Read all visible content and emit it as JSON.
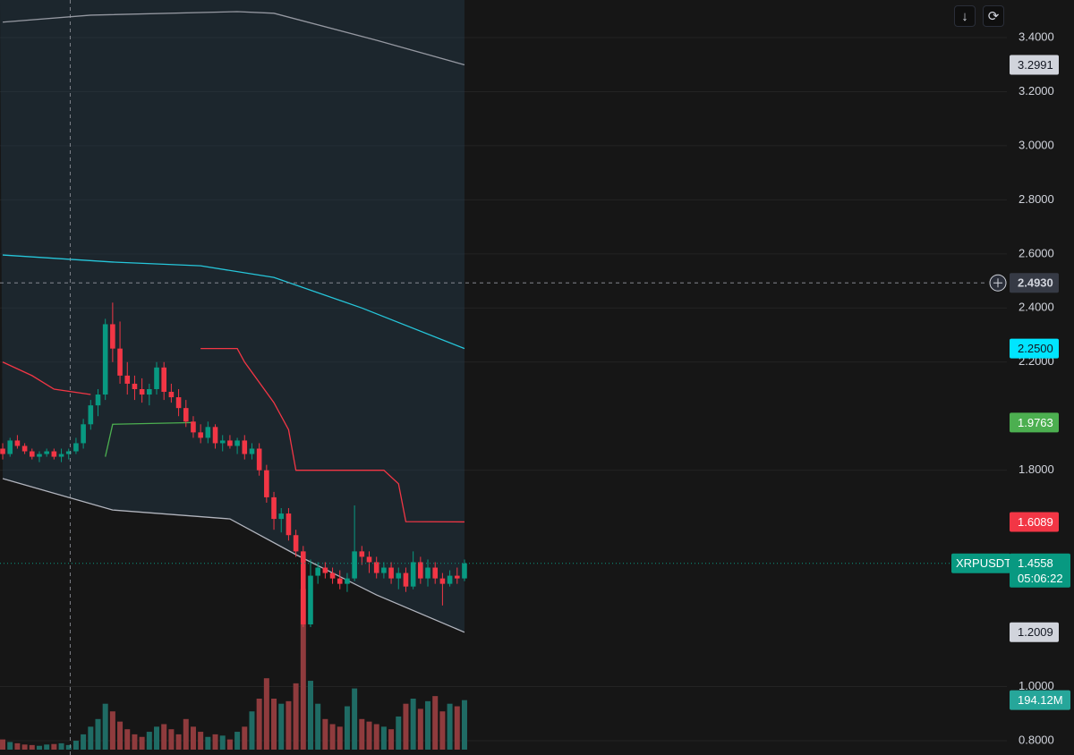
{
  "chart_data": {
    "type": "candlestick",
    "symbol": "XRPUSDT",
    "countdown": "05:06:22",
    "xlim": [
      -0.37,
      137
    ],
    "ylim": [
      0.747,
      3.539
    ],
    "yticks": [
      {
        "value": 3.4,
        "label": "3.4000"
      },
      {
        "value": 3.2,
        "label": "3.2000"
      },
      {
        "value": 3.0,
        "label": "3.0000"
      },
      {
        "value": 2.8,
        "label": "2.8000"
      },
      {
        "value": 2.6,
        "label": "2.6000"
      },
      {
        "value": 2.4,
        "label": "2.4000"
      },
      {
        "value": 2.2,
        "label": "2.2000"
      },
      {
        "value": 1.8,
        "label": "1.8000"
      },
      {
        "value": 1.0,
        "label": "1.0000"
      },
      {
        "value": 0.8,
        "label": "0.8000"
      }
    ],
    "grid": true,
    "up_color": "#089981",
    "down_color": "#f23645",
    "candles": [
      [
        1.88,
        1.9,
        1.84,
        1.86
      ],
      [
        1.86,
        1.92,
        1.85,
        1.91
      ],
      [
        1.91,
        1.93,
        1.88,
        1.89
      ],
      [
        1.89,
        1.9,
        1.86,
        1.87
      ],
      [
        1.87,
        1.88,
        1.84,
        1.85
      ],
      [
        1.85,
        1.87,
        1.83,
        1.86
      ],
      [
        1.86,
        1.88,
        1.85,
        1.87
      ],
      [
        1.87,
        1.88,
        1.84,
        1.85
      ],
      [
        1.85,
        1.88,
        1.83,
        1.86
      ],
      [
        1.86,
        1.88,
        1.84,
        1.87
      ],
      [
        1.87,
        1.92,
        1.86,
        1.9
      ],
      [
        1.9,
        1.99,
        1.88,
        1.97
      ],
      [
        1.97,
        2.06,
        1.95,
        2.04
      ],
      [
        2.04,
        2.1,
        2.0,
        2.08
      ],
      [
        2.08,
        2.36,
        2.06,
        2.34
      ],
      [
        2.34,
        2.42,
        2.2,
        2.25
      ],
      [
        2.25,
        2.35,
        2.12,
        2.15
      ],
      [
        2.15,
        2.2,
        2.08,
        2.12
      ],
      [
        2.12,
        2.15,
        2.06,
        2.1
      ],
      [
        2.1,
        2.14,
        2.05,
        2.08
      ],
      [
        2.08,
        2.12,
        2.04,
        2.1
      ],
      [
        2.1,
        2.2,
        2.08,
        2.18
      ],
      [
        2.18,
        2.2,
        2.06,
        2.09
      ],
      [
        2.09,
        2.12,
        2.05,
        2.07
      ],
      [
        2.07,
        2.1,
        2.0,
        2.03
      ],
      [
        2.03,
        2.06,
        1.96,
        1.98
      ],
      [
        1.98,
        2.0,
        1.92,
        1.94
      ],
      [
        1.94,
        1.97,
        1.9,
        1.92
      ],
      [
        1.92,
        1.98,
        1.9,
        1.96
      ],
      [
        1.96,
        1.97,
        1.88,
        1.9
      ],
      [
        1.9,
        1.93,
        1.87,
        1.91
      ],
      [
        1.91,
        1.93,
        1.88,
        1.89
      ],
      [
        1.89,
        1.92,
        1.86,
        1.91
      ],
      [
        1.91,
        1.93,
        1.84,
        1.86
      ],
      [
        1.86,
        1.9,
        1.84,
        1.88
      ],
      [
        1.88,
        1.9,
        1.78,
        1.8
      ],
      [
        1.8,
        1.82,
        1.68,
        1.7
      ],
      [
        1.7,
        1.72,
        1.58,
        1.62
      ],
      [
        1.62,
        1.66,
        1.57,
        1.64
      ],
      [
        1.64,
        1.66,
        1.54,
        1.56
      ],
      [
        1.56,
        1.58,
        1.48,
        1.5
      ],
      [
        1.5,
        1.52,
        1.22,
        1.23
      ],
      [
        1.23,
        1.47,
        1.22,
        1.41
      ],
      [
        1.41,
        1.46,
        1.38,
        1.44
      ],
      [
        1.44,
        1.46,
        1.4,
        1.42
      ],
      [
        1.42,
        1.44,
        1.38,
        1.4
      ],
      [
        1.4,
        1.43,
        1.36,
        1.38
      ],
      [
        1.38,
        1.42,
        1.35,
        1.4
      ],
      [
        1.4,
        1.67,
        1.39,
        1.5
      ],
      [
        1.5,
        1.52,
        1.45,
        1.48
      ],
      [
        1.48,
        1.5,
        1.42,
        1.46
      ],
      [
        1.46,
        1.48,
        1.4,
        1.42
      ],
      [
        1.42,
        1.46,
        1.4,
        1.44
      ],
      [
        1.44,
        1.46,
        1.38,
        1.4
      ],
      [
        1.4,
        1.44,
        1.36,
        1.42
      ],
      [
        1.42,
        1.44,
        1.35,
        1.37
      ],
      [
        1.37,
        1.5,
        1.36,
        1.46
      ],
      [
        1.46,
        1.48,
        1.38,
        1.4
      ],
      [
        1.4,
        1.47,
        1.37,
        1.44
      ],
      [
        1.44,
        1.46,
        1.38,
        1.4
      ],
      [
        1.4,
        1.42,
        1.3,
        1.38
      ],
      [
        1.38,
        1.43,
        1.37,
        1.41
      ],
      [
        1.41,
        1.44,
        1.38,
        1.4
      ],
      [
        1.4,
        1.47,
        1.39,
        1.4558
      ]
    ],
    "volume": {
      "ylim": [
        0,
        2940
      ],
      "up_color": "#1f6b64",
      "down_color": "#8f3b3d",
      "values": [
        40,
        30,
        25,
        20,
        18,
        15,
        20,
        22,
        25,
        18,
        35,
        60,
        90,
        120,
        180,
        150,
        110,
        80,
        60,
        50,
        70,
        90,
        100,
        80,
        60,
        120,
        90,
        70,
        50,
        60,
        55,
        40,
        70,
        90,
        150,
        200,
        280,
        200,
        180,
        190,
        260,
        630,
        270,
        180,
        120,
        100,
        90,
        170,
        240,
        120,
        110,
        100,
        90,
        80,
        130,
        180,
        200,
        160,
        190,
        210,
        150,
        180,
        170,
        194.12
      ],
      "last_label": "194.12M"
    },
    "lines": [
      {
        "color": "#9598a1",
        "x": [
          0,
          12,
          32,
          37,
          51,
          63
        ],
        "values": [
          3.457,
          3.483,
          3.496,
          3.49,
          3.39,
          3.2991
        ]
      },
      {
        "color": "#26c6da",
        "x": [
          0,
          15,
          27,
          37,
          49,
          63
        ],
        "values": [
          2.596,
          2.57,
          2.556,
          2.513,
          2.4,
          2.25
        ]
      },
      {
        "color": "#b2b5be",
        "x": [
          0,
          15,
          31,
          40,
          51,
          63
        ],
        "values": [
          1.769,
          1.653,
          1.62,
          1.488,
          1.339,
          1.2009
        ]
      },
      {
        "color": "#f23645",
        "x": [
          0,
          4,
          7,
          12,
          13,
          27,
          32,
          33,
          37,
          39,
          40,
          52,
          54,
          55,
          63
        ],
        "values": [
          2.2,
          2.15,
          2.1,
          2.08,
          null,
          2.25,
          2.25,
          2.2,
          2.05,
          1.95,
          1.8,
          1.8,
          1.75,
          1.61,
          1.6089
        ]
      },
      {
        "color": "#4caf50",
        "x": [
          14,
          15,
          26
        ],
        "values": [
          1.85,
          1.97,
          1.9763
        ]
      }
    ],
    "price_tags": [
      {
        "value": 3.2991,
        "color": "#d1d4dc",
        "text_color": "#131722"
      },
      {
        "value": 2.25,
        "label": "2.2500",
        "color": "#00e5ff",
        "text_color": "#131722"
      },
      {
        "value": 1.9763,
        "color": "#4caf50",
        "text_color": "#ffffff"
      },
      {
        "value": 1.6089,
        "color": "#f23645",
        "text_color": "#ffffff"
      },
      {
        "value": 1.2009,
        "color": "#d1d4dc",
        "text_color": "#131722"
      }
    ],
    "crosshair": {
      "x": 9.2,
      "y": {
        "value": 2.493,
        "label": "2.4930"
      }
    }
  }
}
